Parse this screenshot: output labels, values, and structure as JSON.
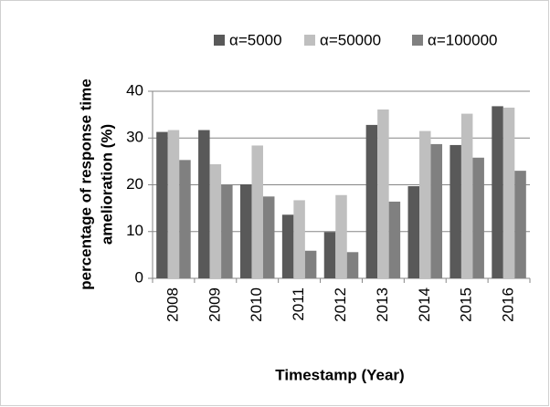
{
  "chart_data": {
    "type": "bar",
    "y_label": [
      "percentage of response time",
      "amelioration (%)"
    ],
    "x_label": "Timestamp  (Year)",
    "categories": [
      "2008",
      "2009",
      "2010",
      "2011",
      "2012",
      "2013",
      "2014",
      "2015",
      "2016"
    ],
    "series": [
      {
        "name": "α=5000",
        "color": "#595959",
        "values": [
          31.3,
          31.7,
          20.1,
          13.6,
          9.9,
          32.8,
          19.7,
          28.5,
          36.8
        ]
      },
      {
        "name": "α=50000",
        "color": "#bfbfbf",
        "values": [
          31.7,
          24.4,
          28.4,
          16.7,
          17.8,
          36.1,
          31.5,
          35.2,
          36.5
        ]
      },
      {
        "name": "α=100000",
        "color": "#808080",
        "values": [
          25.3,
          20.0,
          17.5,
          5.9,
          5.6,
          16.4,
          28.7,
          25.8,
          23.0
        ]
      }
    ],
    "ylim": [
      0,
      40
    ],
    "yticks": [
      0,
      10,
      20,
      30,
      40
    ],
    "grid": true,
    "legend": "top"
  }
}
